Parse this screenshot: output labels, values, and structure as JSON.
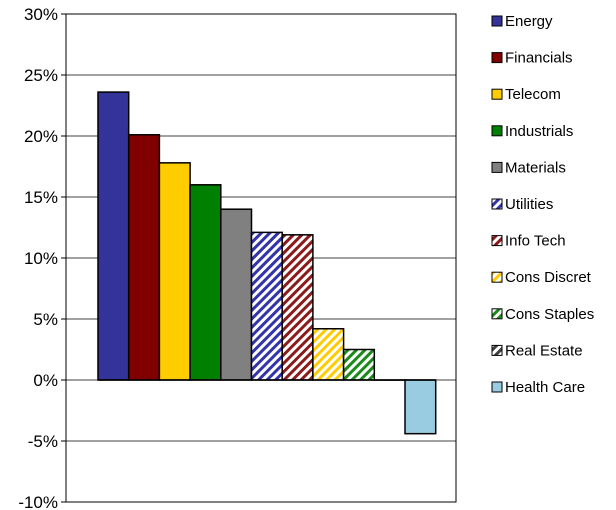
{
  "chart_data": {
    "type": "bar",
    "categories": [
      "Energy",
      "Financials",
      "Telecom",
      "Industrials",
      "Materials",
      "Utilities",
      "Info Tech",
      "Cons Discret",
      "Cons Staples",
      "Real Estate",
      "Health Care"
    ],
    "values": [
      23.6,
      20.1,
      17.8,
      16.0,
      14.0,
      12.1,
      11.9,
      4.2,
      2.5,
      0.0,
      -4.4
    ],
    "ylim": [
      -10,
      30
    ],
    "yticks": [
      30,
      25,
      20,
      15,
      10,
      5,
      0,
      -5,
      -10
    ],
    "ytick_labels": [
      "30%",
      "25%",
      "20%",
      "15%",
      "10%",
      "5%",
      "0%",
      "-5%",
      "-10%"
    ],
    "grid": true,
    "legend": "right",
    "colors": [
      "#333399",
      "#800000",
      "#ffcc00",
      "#008000",
      "#808080",
      "#3333aa",
      "#8b1a1a",
      "#ffcc00",
      "#1a8a1a",
      "#404040",
      "#99cce0"
    ],
    "hatched": [
      false,
      false,
      false,
      false,
      false,
      true,
      true,
      true,
      true,
      true,
      false
    ]
  }
}
